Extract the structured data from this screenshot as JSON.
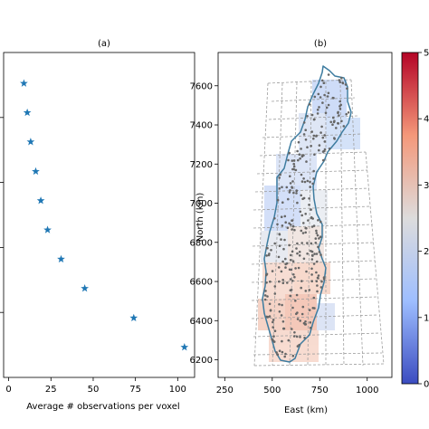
{
  "chart_data": [
    {
      "type": "scatter",
      "title": "(a)",
      "xlabel": "Average # observations per voxel",
      "ylabel": "",
      "xlim": [
        -3,
        110
      ],
      "ylim": [
        0,
        1
      ],
      "x_ticks": [
        0,
        25,
        50,
        75,
        100
      ],
      "x_tick_labels": [
        "0",
        "25",
        "50",
        "75",
        "100"
      ],
      "marker": "star",
      "color": "#1f77b4",
      "points": [
        {
          "x": 9,
          "y": 0.905
        },
        {
          "x": 11,
          "y": 0.815
        },
        {
          "x": 13,
          "y": 0.725
        },
        {
          "x": 16,
          "y": 0.634
        },
        {
          "x": 19,
          "y": 0.544
        },
        {
          "x": 23,
          "y": 0.454
        },
        {
          "x": 31,
          "y": 0.364
        },
        {
          "x": 45,
          "y": 0.274
        },
        {
          "x": 74,
          "y": 0.183
        },
        {
          "x": 104,
          "y": 0.093
        }
      ]
    },
    {
      "type": "map",
      "title": "(b)",
      "xlabel": "East (km)",
      "ylabel": "North (km)",
      "xlim": [
        215,
        1130
      ],
      "ylim": [
        6110,
        7770
      ],
      "x_ticks": [
        250,
        500,
        750,
        1000
      ],
      "x_tick_labels": [
        "250",
        "500",
        "750",
        "1000"
      ],
      "y_ticks": [
        6200,
        6400,
        6600,
        6800,
        7000,
        7200,
        7400,
        7600
      ],
      "y_tick_labels": [
        "6200",
        "6400",
        "6600",
        "6800",
        "7000",
        "7200",
        "7400",
        "7600"
      ],
      "grid": true,
      "colorbar": {
        "colormap": "coolwarm",
        "colors": [
          "#b40426",
          "#f4987a",
          "#dddcdc",
          "#9ebeff",
          "#3b4cc0"
        ],
        "tick_labels": [
          "5",
          "4",
          "3",
          "2",
          "1",
          "0"
        ]
      }
    }
  ]
}
